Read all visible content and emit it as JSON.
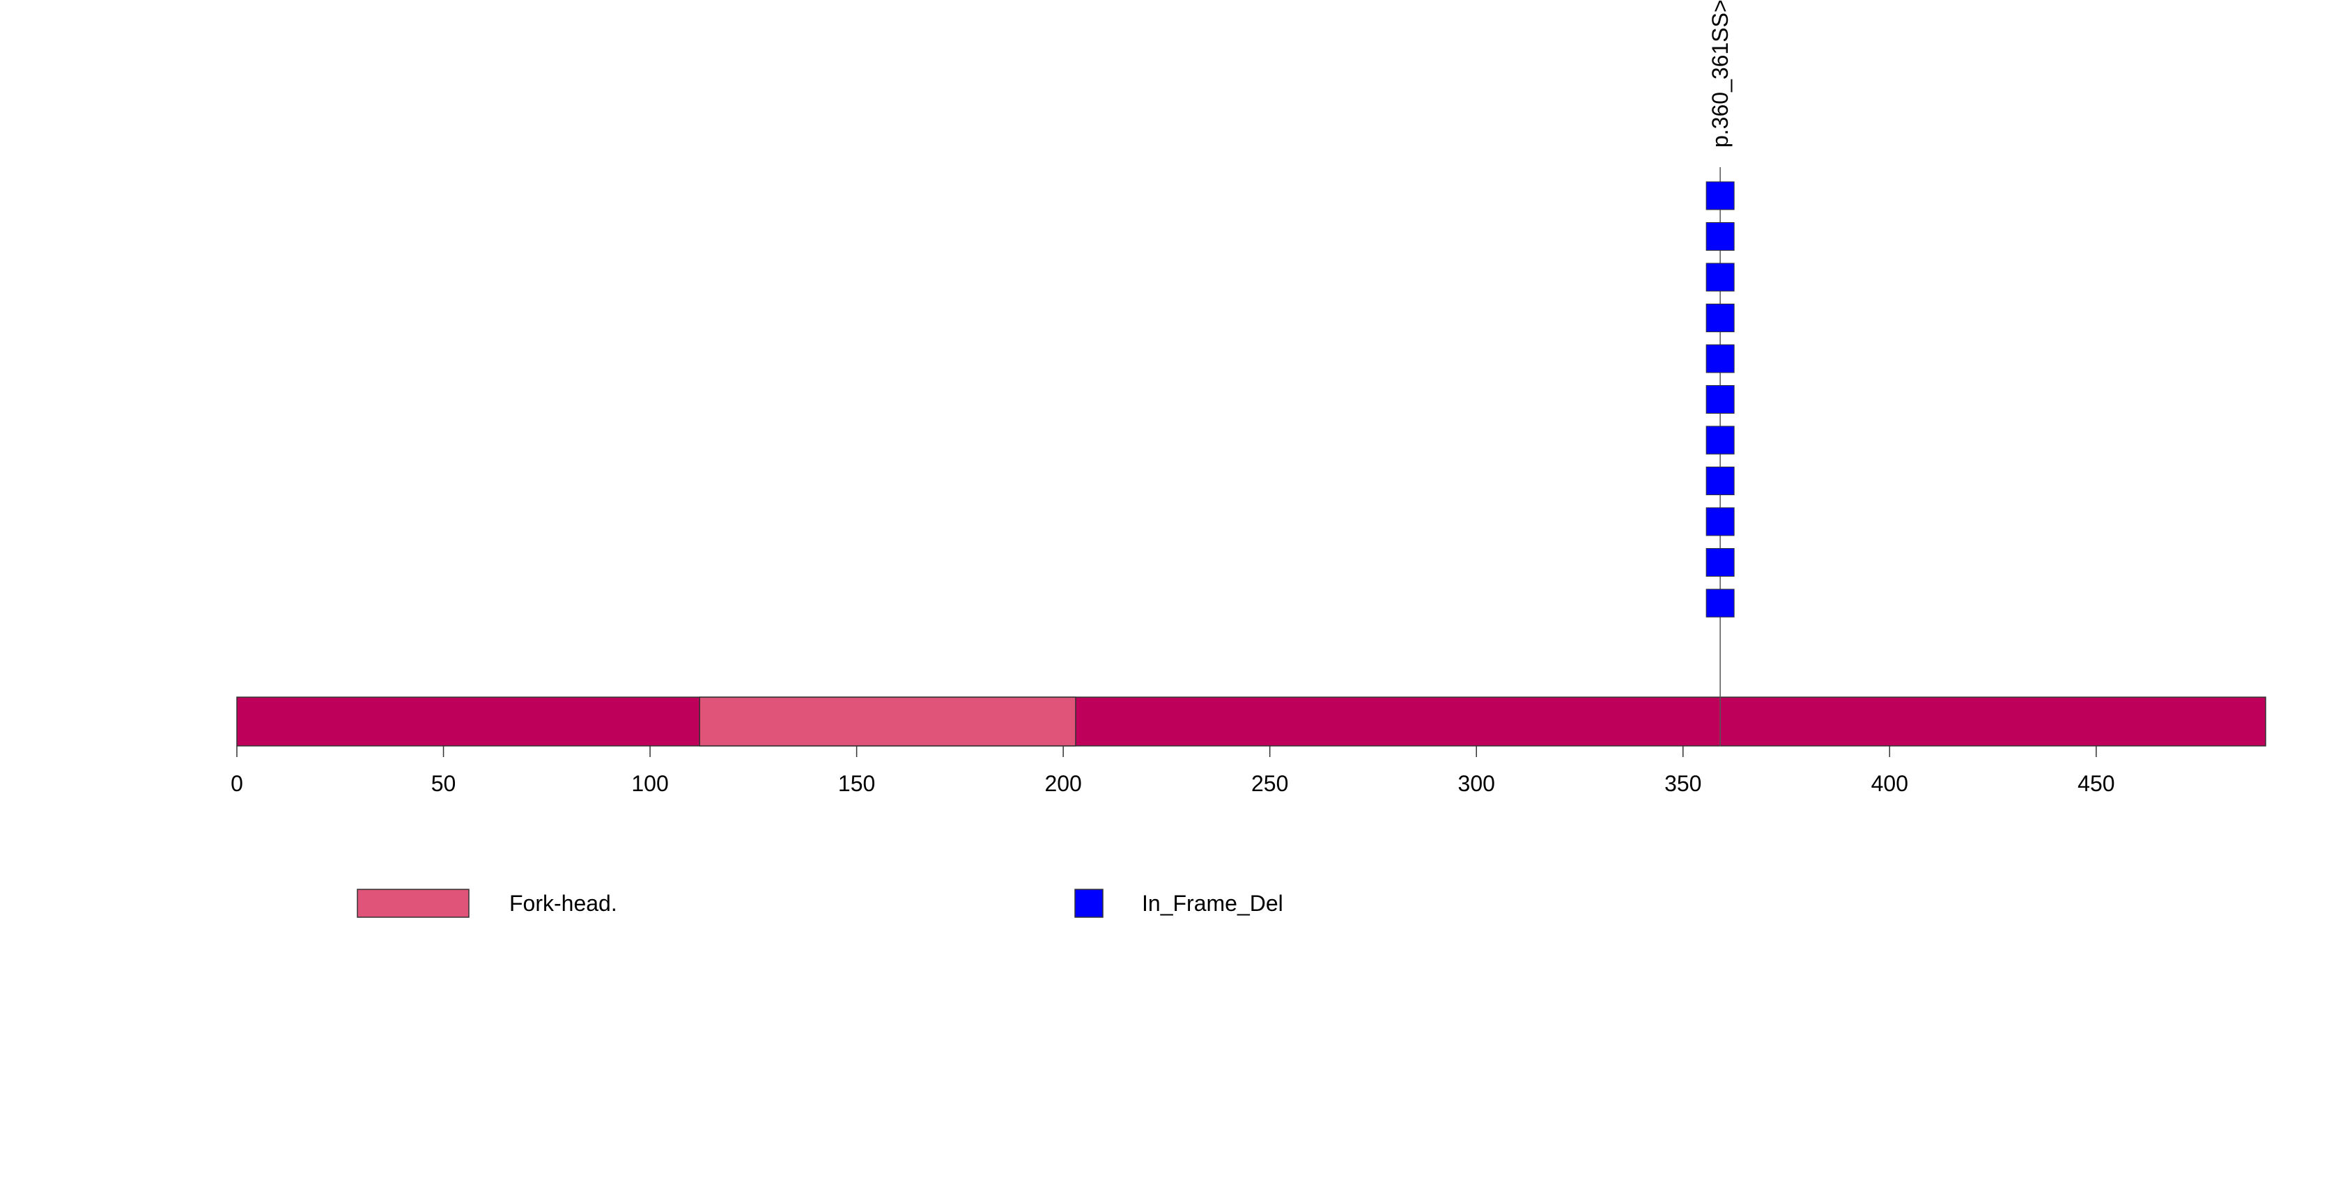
{
  "chart_data": {
    "type": "lollipop",
    "protein_length": 491,
    "axis": {
      "xlim": [
        0,
        491
      ],
      "ticks": [
        0,
        50,
        100,
        150,
        200,
        250,
        300,
        350,
        400,
        450
      ]
    },
    "protein_color": "#BF005A",
    "domains": [
      {
        "name": "Fork-head.",
        "start": 112,
        "end": 203,
        "color": "#E0547A"
      }
    ],
    "mutations": [
      {
        "label": "p.360_361SS>",
        "position": 359,
        "count": 11,
        "type": "In_Frame_Del",
        "color": "#0000FF"
      }
    ],
    "legend": [
      {
        "label": "Fork-head.",
        "kind": "domain",
        "color": "#E0547A"
      },
      {
        "label": "In_Frame_Del",
        "kind": "mutation",
        "color": "#0000FF"
      }
    ]
  }
}
